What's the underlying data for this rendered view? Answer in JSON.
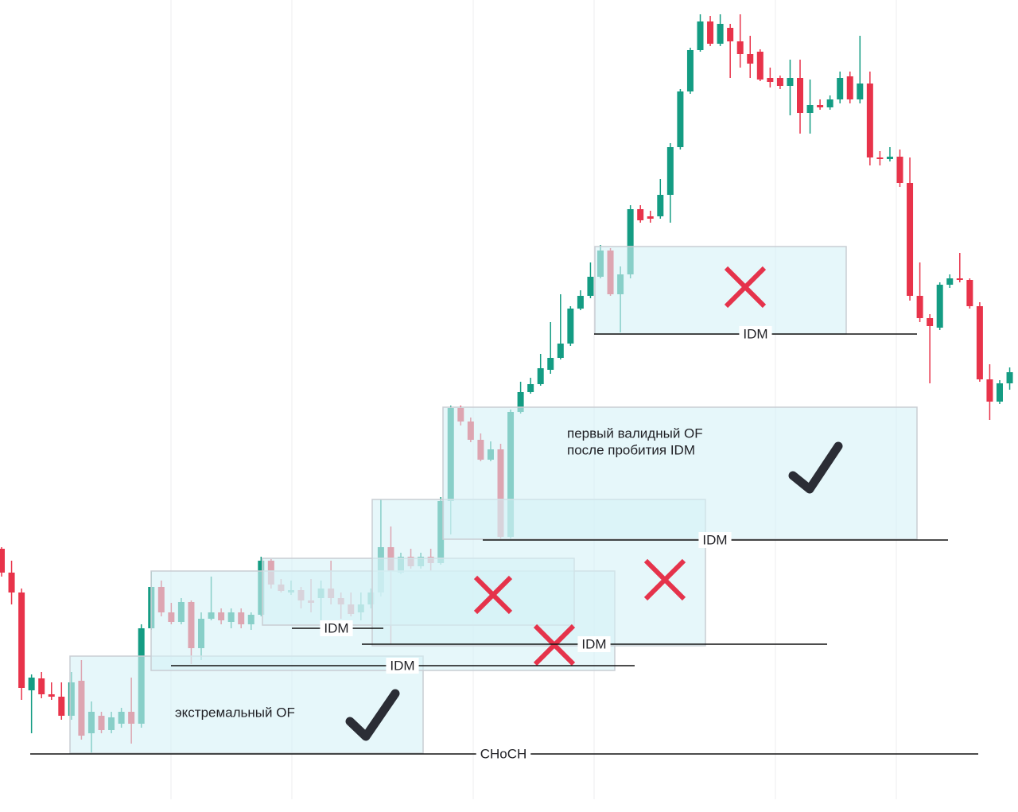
{
  "chart_data": {
    "type": "candlestick",
    "ylim": [
      0,
      1021
    ],
    "up_color": "#149c83",
    "down_color": "#e8334a",
    "ohlc": [
      [
        331,
        333,
        296,
        301
      ],
      [
        301,
        316,
        261,
        276
      ],
      [
        276,
        281,
        141,
        156
      ],
      [
        153,
        173,
        99,
        169
      ],
      [
        168,
        176,
        143,
        148
      ],
      [
        148,
        163,
        141,
        145
      ],
      [
        145,
        163,
        116,
        121
      ],
      [
        121,
        176,
        116,
        163
      ],
      [
        165,
        191,
        91,
        96
      ],
      [
        99,
        139,
        73,
        126
      ],
      [
        121,
        126,
        99,
        103
      ],
      [
        103,
        126,
        99,
        119
      ],
      [
        111,
        131,
        106,
        126
      ],
      [
        126,
        169,
        86,
        111
      ],
      [
        111,
        236,
        106,
        231
      ],
      [
        231,
        303,
        229,
        283
      ],
      [
        283,
        291,
        246,
        251
      ],
      [
        251,
        263,
        236,
        239
      ],
      [
        239,
        269,
        236,
        264
      ],
      [
        264,
        266,
        186,
        206
      ],
      [
        206,
        251,
        191,
        243
      ],
      [
        243,
        296,
        241,
        251
      ],
      [
        251,
        256,
        236,
        241
      ],
      [
        239,
        256,
        231,
        251
      ],
      [
        251,
        256,
        231,
        236
      ],
      [
        236,
        251,
        229,
        248
      ],
      [
        248,
        321,
        246,
        316
      ],
      [
        316,
        318,
        281,
        286
      ],
      [
        286,
        293,
        276,
        278
      ],
      [
        276,
        291,
        273,
        279
      ],
      [
        279,
        283,
        256,
        266
      ],
      [
        266,
        293,
        251,
        263
      ],
      [
        269,
        291,
        236,
        281
      ],
      [
        281,
        316,
        261,
        269
      ],
      [
        269,
        276,
        243,
        261
      ],
      [
        261,
        276,
        246,
        249
      ],
      [
        251,
        276,
        241,
        261
      ],
      [
        261,
        281,
        256,
        276
      ],
      [
        276,
        393,
        271,
        333
      ],
      [
        333,
        359,
        211,
        303
      ],
      [
        301,
        326,
        299,
        321
      ],
      [
        321,
        331,
        306,
        309
      ],
      [
        309,
        326,
        306,
        321
      ],
      [
        321,
        331,
        303,
        313
      ],
      [
        313,
        396,
        311,
        391
      ],
      [
        391,
        511,
        349,
        508
      ],
      [
        508,
        511,
        486,
        491
      ],
      [
        491,
        496,
        465,
        468
      ],
      [
        468,
        476,
        441,
        443
      ],
      [
        443,
        466,
        441,
        456
      ],
      [
        456,
        463,
        343,
        346
      ],
      [
        346,
        506,
        343,
        503
      ],
      [
        503,
        541,
        501,
        528
      ],
      [
        528,
        546,
        526,
        538
      ],
      [
        538,
        576,
        536,
        558
      ],
      [
        556,
        616,
        551,
        571
      ],
      [
        571,
        651,
        569,
        589
      ],
      [
        589,
        636,
        586,
        633
      ],
      [
        633,
        656,
        631,
        649
      ],
      [
        649,
        691,
        646,
        673
      ],
      [
        673,
        713,
        671,
        706
      ],
      [
        706,
        709,
        649,
        651
      ],
      [
        651,
        686,
        603,
        676
      ],
      [
        676,
        763,
        671,
        758
      ],
      [
        758,
        763,
        741,
        744
      ],
      [
        749,
        756,
        741,
        746
      ],
      [
        749,
        796,
        746,
        776
      ],
      [
        776,
        841,
        741,
        836
      ],
      [
        836,
        909,
        833,
        906
      ],
      [
        906,
        961,
        903,
        958
      ],
      [
        958,
        1003,
        956,
        994
      ],
      [
        994,
        1001,
        963,
        966
      ],
      [
        966,
        1003,
        963,
        991
      ],
      [
        986,
        991,
        923,
        969
      ],
      [
        969,
        1003,
        936,
        953
      ],
      [
        953,
        976,
        923,
        941
      ],
      [
        956,
        959,
        919,
        921
      ],
      [
        923,
        936,
        911,
        918
      ],
      [
        923,
        926,
        909,
        913
      ],
      [
        913,
        946,
        876,
        923
      ],
      [
        923,
        946,
        853,
        879
      ],
      [
        879,
        921,
        853,
        889
      ],
      [
        889,
        896,
        883,
        886
      ],
      [
        886,
        901,
        883,
        896
      ],
      [
        896,
        931,
        891,
        923
      ],
      [
        925,
        931,
        891,
        896
      ],
      [
        896,
        976,
        891,
        916
      ],
      [
        916,
        931,
        813,
        823
      ],
      [
        823,
        831,
        813,
        821
      ],
      [
        821,
        836,
        818,
        824
      ],
      [
        824,
        833,
        786,
        791
      ],
      [
        791,
        823,
        643,
        649
      ],
      [
        649,
        691,
        616,
        621
      ],
      [
        621,
        626,
        539,
        611
      ],
      [
        609,
        666,
        606,
        663
      ],
      [
        663,
        676,
        659,
        671
      ],
      [
        671,
        703,
        666,
        669
      ],
      [
        669,
        671,
        633,
        636
      ],
      [
        636,
        641,
        541,
        544
      ],
      [
        544,
        563,
        493,
        516
      ],
      [
        516,
        543,
        513,
        539
      ],
      [
        539,
        559,
        531,
        553
      ]
    ],
    "annotations": {
      "choch": "CHoCH",
      "idm": [
        "IDM",
        "IDM",
        "IDM",
        "IDM",
        "IDM"
      ],
      "extreme_of": "экстремальный OF",
      "valid_of": [
        "первый валидный OF",
        "после пробития IDM"
      ]
    }
  }
}
